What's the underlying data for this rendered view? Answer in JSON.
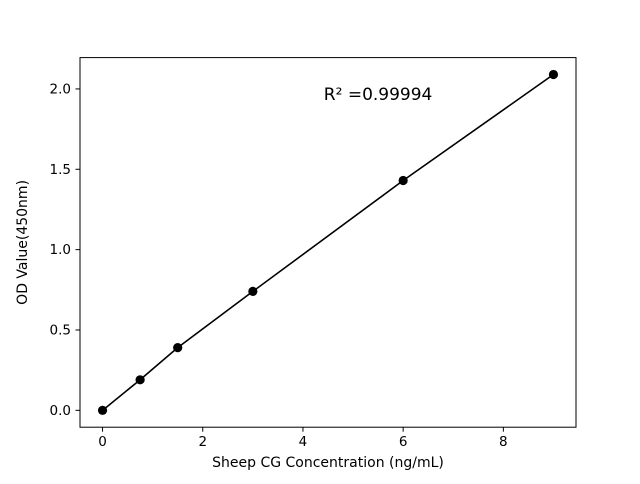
{
  "chart_data": {
    "type": "scatter",
    "x": [
      0,
      0.75,
      1.5,
      3,
      6,
      9
    ],
    "y": [
      0.0,
      0.19,
      0.39,
      0.74,
      1.43,
      2.09
    ],
    "title": "",
    "xlabel": "Sheep CG Concentration (ng/mL)",
    "ylabel": "OD Value(450nm)",
    "xlim": [
      -0.45,
      9.45
    ],
    "ylim": [
      -0.105,
      2.195
    ],
    "xticks": [
      0,
      2,
      4,
      6,
      8
    ],
    "xticklabels": [
      "0",
      "2",
      "4",
      "6",
      "8"
    ],
    "yticks": [
      0.0,
      0.5,
      1.0,
      1.5,
      2.0
    ],
    "yticklabels": [
      "0.0",
      "0.5",
      "1.0",
      "1.5",
      "2.0"
    ],
    "annotation": {
      "text": "R² =0.99994",
      "x": 5.5,
      "y": 1.93
    },
    "line": true,
    "marker": "circle",
    "marker_color": "#000000",
    "line_color": "#000000",
    "grid": false,
    "legend": null
  }
}
